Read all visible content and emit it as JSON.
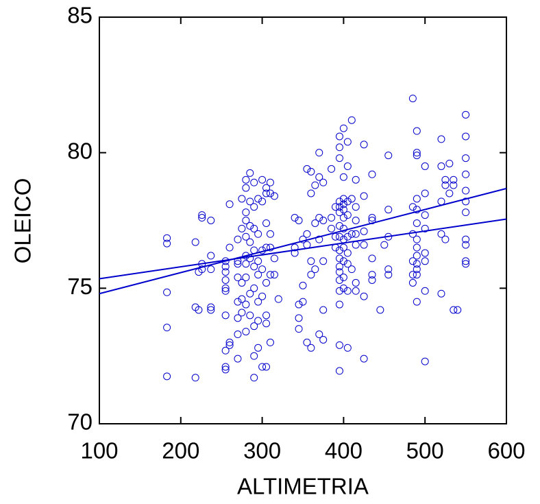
{
  "chart_data": {
    "type": "scatter",
    "xlabel": "ALTIMETRIA",
    "ylabel": "OLEICO",
    "xlim": [
      100,
      600
    ],
    "xticks": [
      100,
      200,
      300,
      400,
      500,
      600
    ],
    "ylim": [
      70,
      85
    ],
    "yticks": [
      70,
      75,
      80,
      85
    ],
    "grid": false,
    "color": "#0000cc",
    "x": [
      183,
      183,
      183,
      183,
      183,
      218,
      218,
      218,
      222,
      222,
      226,
      226,
      226,
      226,
      237,
      237,
      237,
      237,
      237,
      255,
      255,
      255,
      255,
      255,
      255,
      255,
      255,
      255,
      255,
      260,
      260,
      260,
      260,
      270,
      270,
      270,
      270,
      270,
      270,
      270,
      270,
      275,
      275,
      275,
      275,
      275,
      280,
      280,
      280,
      280,
      280,
      280,
      280,
      280,
      280,
      280,
      285,
      285,
      285,
      285,
      285,
      285,
      285,
      290,
      290,
      290,
      290,
      290,
      290,
      290,
      290,
      290,
      295,
      295,
      295,
      295,
      295,
      295,
      295,
      300,
      300,
      300,
      300,
      300,
      300,
      305,
      305,
      305,
      305,
      305,
      305,
      305,
      305,
      310,
      310,
      310,
      310,
      310,
      310,
      315,
      315,
      315,
      320,
      340,
      340,
      340,
      345,
      345,
      345,
      345,
      350,
      350,
      350,
      355,
      355,
      355,
      355,
      360,
      360,
      360,
      360,
      360,
      365,
      365,
      365,
      370,
      370,
      370,
      370,
      370,
      375,
      375,
      375,
      375,
      375,
      385,
      385,
      385,
      390,
      390,
      390,
      395,
      395,
      395,
      395,
      395,
      395,
      395,
      395,
      395,
      395,
      395,
      395,
      395,
      395,
      395,
      395,
      395,
      400,
      400,
      400,
      400,
      400,
      400,
      400,
      400,
      400,
      400,
      400,
      400,
      405,
      405,
      405,
      405,
      405,
      405,
      405,
      405,
      405,
      410,
      410,
      410,
      410,
      415,
      415,
      415,
      415,
      415,
      415,
      415,
      425,
      425,
      425,
      425,
      425,
      425,
      435,
      435,
      435,
      435,
      435,
      435,
      445,
      450,
      455,
      455,
      455,
      455,
      455,
      485,
      485,
      485,
      485,
      485,
      485,
      490,
      490,
      490,
      490,
      490,
      490,
      490,
      490,
      490,
      490,
      490,
      490,
      490,
      500,
      500,
      500,
      500,
      500,
      500,
      500,
      500,
      520,
      520,
      520,
      520,
      520,
      525,
      525,
      525,
      530,
      530,
      535,
      535,
      535,
      540,
      550,
      550,
      550,
      550,
      550,
      550,
      550,
      550,
      550,
      550,
      550
    ],
    "values": [
      76.85,
      76.65,
      74.85,
      73.55,
      71.75,
      76.7,
      74.3,
      71.7,
      75.6,
      74.2,
      77.7,
      77.6,
      75.9,
      75.7,
      77.5,
      76.2,
      75.7,
      74.2,
      74.3,
      75.6,
      75.3,
      75.0,
      74.0,
      72.7,
      72.1,
      72.0,
      76.0,
      75.8,
      74.9,
      78.1,
      76.5,
      73.0,
      72.9,
      76.8,
      76.0,
      75.9,
      75.4,
      74.5,
      73.9,
      73.3,
      72.4,
      78.3,
      77.2,
      75.2,
      74.6,
      74.1,
      79.0,
      78.7,
      77.8,
      77.5,
      76.9,
      76.2,
      75.9,
      75.4,
      74.4,
      73.4,
      79.25,
      78.2,
      77.3,
      76.7,
      76.1,
      74.8,
      74.0,
      78.9,
      78.0,
      77.2,
      76.4,
      75.8,
      75.0,
      73.6,
      72.5,
      71.7,
      78.3,
      77.0,
      76.0,
      75.5,
      74.5,
      73.8,
      72.8,
      79.0,
      78.2,
      76.4,
      75.7,
      74.7,
      72.1,
      78.7,
      78.5,
      77.4,
      76.5,
      75.2,
      74.0,
      73.7,
      72.1,
      78.9,
      78.5,
      77.0,
      76.5,
      75.5,
      73.0,
      78.4,
      76.1,
      75.5,
      74.6,
      77.6,
      76.5,
      76.3,
      77.5,
      74.4,
      73.9,
      73.5,
      76.8,
      75.1,
      74.5,
      79.4,
      77.0,
      76.6,
      73.0,
      79.3,
      78.5,
      76.0,
      75.5,
      72.8,
      78.8,
      77.4,
      75.7,
      80.0,
      79.1,
      77.6,
      76.8,
      73.3,
      78.9,
      77.5,
      76.0,
      74.2,
      73.1,
      79.4,
      77.6,
      77.2,
      78.0,
      76.9,
      76.5,
      80.6,
      80.2,
      79.8,
      78.2,
      78.0,
      77.8,
      77.3,
      76.9,
      76.4,
      76.1,
      75.8,
      75.6,
      75.3,
      74.9,
      74.4,
      72.9,
      71.95,
      80.9,
      79.1,
      78.3,
      78.1,
      77.9,
      77.6,
      77.2,
      76.8,
      76.5,
      76.0,
      75.4,
      75.0,
      80.4,
      79.5,
      78.2,
      77.7,
      76.9,
      76.3,
      75.9,
      74.9,
      72.8,
      81.2,
      78.3,
      77.0,
      75.7,
      79.0,
      78.0,
      77.5,
      77.0,
      76.6,
      75.2,
      74.9,
      80.3,
      78.4,
      77.1,
      76.6,
      74.7,
      72.4,
      79.2,
      77.6,
      77.5,
      76.1,
      75.5,
      75.3,
      74.2,
      76.6,
      79.9,
      77.9,
      76.9,
      75.7,
      75.5,
      82.0,
      78.0,
      77.0,
      76.0,
      75.5,
      75.2,
      80.8,
      80.0,
      79.9,
      78.3,
      77.9,
      77.4,
      76.8,
      76.5,
      76.2,
      75.9,
      75.7,
      75.5,
      74.5,
      79.5,
      78.5,
      77.7,
      77.2,
      76.3,
      76.0,
      74.9,
      72.3,
      80.5,
      79.5,
      78.2,
      77.0,
      74.8,
      79.0,
      78.8,
      76.8,
      79.6,
      78.5,
      79.0,
      78.8,
      74.2,
      74.2,
      81.4,
      80.6,
      79.8,
      79.2,
      78.6,
      78.2,
      77.8,
      76.8,
      76.6,
      76.0,
      75.9
    ],
    "lines": [
      {
        "color": "#0000cc",
        "x": [
          100,
          600
        ],
        "values": [
          75.35,
          77.55
        ]
      },
      {
        "color": "#0000cc",
        "x": [
          100,
          600
        ],
        "values": [
          74.8,
          78.68
        ]
      }
    ]
  }
}
